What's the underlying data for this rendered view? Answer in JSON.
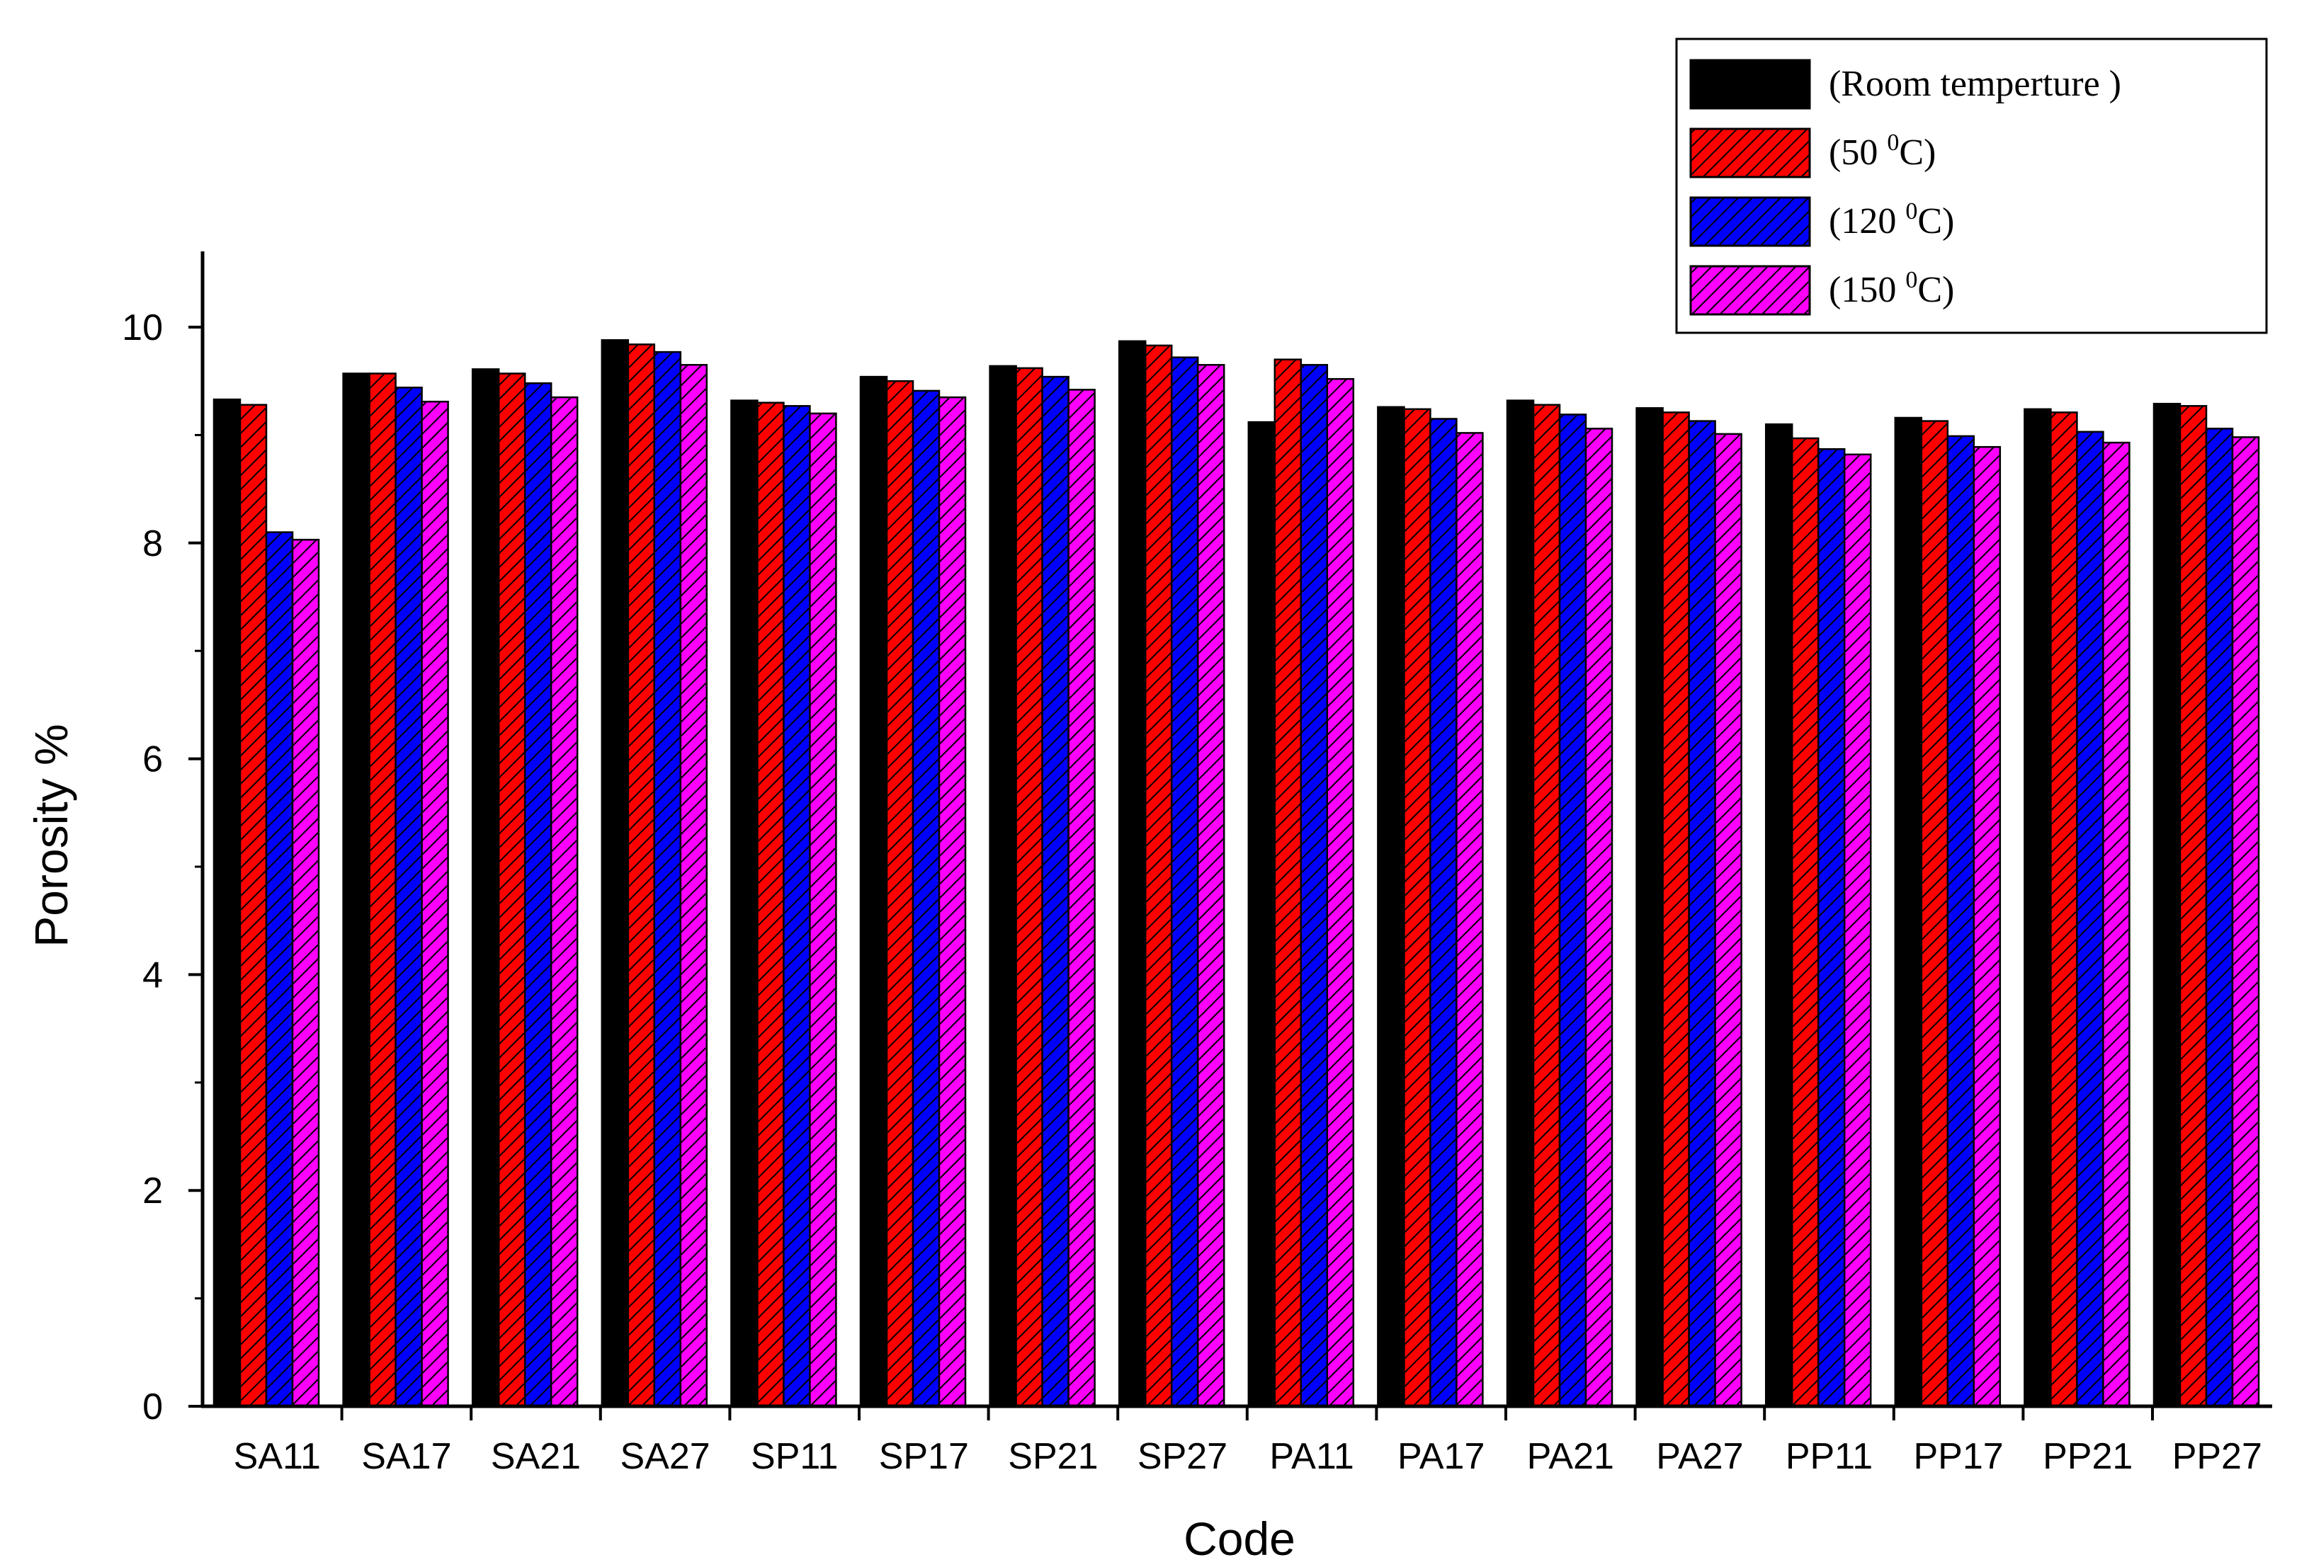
{
  "chart_data": {
    "type": "bar",
    "title": "",
    "xlabel": "Code",
    "ylabel": "Porosity %",
    "ylim": [
      0,
      10.7
    ],
    "yticks": [
      0,
      2,
      4,
      6,
      8,
      10
    ],
    "grid": false,
    "legend_position": "top-right",
    "categories": [
      "SA11",
      "SA17",
      "SA21",
      "SA27",
      "SP11",
      "SP17",
      "SP21",
      "SP27",
      "PA11",
      "PA17",
      "PA21",
      "PA27",
      "PP11",
      "PP17",
      "PP21",
      "PP27"
    ],
    "series": [
      {
        "name": "(Room temperture )",
        "legend_parts": [
          "(Room temperture )"
        ],
        "color": "#000000",
        "hatch": false,
        "values": [
          9.33,
          9.57,
          9.61,
          9.88,
          9.32,
          9.54,
          9.64,
          9.87,
          9.12,
          9.26,
          9.32,
          9.25,
          9.1,
          9.16,
          9.24,
          9.29
        ]
      },
      {
        "name": "(50 0C)",
        "legend_parts": [
          "(50 ",
          "0",
          "C)"
        ],
        "color": "#ff0000",
        "hatch": true,
        "values": [
          9.28,
          9.57,
          9.57,
          9.84,
          9.3,
          9.5,
          9.62,
          9.83,
          9.7,
          9.24,
          9.28,
          9.21,
          8.97,
          9.13,
          9.21,
          9.27
        ]
      },
      {
        "name": "(120 0C)",
        "legend_parts": [
          "(120 ",
          "0",
          "C)"
        ],
        "color": "#0000ff",
        "hatch": true,
        "values": [
          8.1,
          9.44,
          9.48,
          9.77,
          9.27,
          9.41,
          9.54,
          9.72,
          9.65,
          9.15,
          9.19,
          9.13,
          8.87,
          8.99,
          9.03,
          9.06
        ]
      },
      {
        "name": "(150 0C)",
        "legend_parts": [
          "(150 ",
          "0",
          "C)"
        ],
        "color": "#ff00ff",
        "hatch": true,
        "values": [
          8.03,
          9.31,
          9.35,
          9.65,
          9.2,
          9.35,
          9.42,
          9.65,
          9.52,
          9.02,
          9.06,
          9.01,
          8.82,
          8.89,
          8.93,
          8.98
        ]
      }
    ]
  }
}
